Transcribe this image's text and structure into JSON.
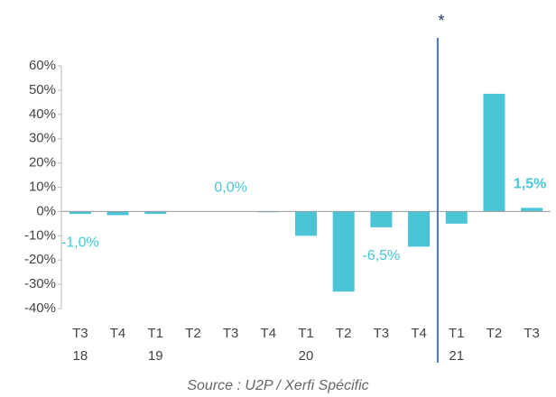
{
  "chart_data": {
    "type": "bar",
    "categories": [
      "T3",
      "T4",
      "T1",
      "T2",
      "T3",
      "T4",
      "T1",
      "T2",
      "T3",
      "T4",
      "T1",
      "T2",
      "T3"
    ],
    "category_years": [
      "18",
      null,
      "19",
      null,
      null,
      null,
      "20",
      null,
      null,
      null,
      "21",
      null,
      null
    ],
    "values": [
      -1.0,
      -1.5,
      -1.0,
      0,
      0.0,
      -0.3,
      -10,
      -33,
      -6.5,
      -14.5,
      -5,
      48.5,
      1.5
    ],
    "value_labels": [
      "-1,0%",
      null,
      null,
      null,
      "0,0%",
      null,
      null,
      null,
      "-6,5%",
      null,
      null,
      null,
      "1,5%"
    ],
    "color": "#4bc5d5",
    "ylim": [
      -40,
      60
    ],
    "yticks": [
      {
        "value": -40,
        "label": "-40%"
      },
      {
        "value": -30,
        "label": "-30%"
      },
      {
        "value": -20,
        "label": "-20%"
      },
      {
        "value": -10,
        "label": "-10%"
      },
      {
        "value": 0,
        "label": "0%"
      },
      {
        "value": 10,
        "label": "10%"
      },
      {
        "value": 20,
        "label": "20%"
      },
      {
        "value": 30,
        "label": "30%"
      },
      {
        "value": 40,
        "label": "40%"
      },
      {
        "value": 50,
        "label": "50%"
      },
      {
        "value": 60,
        "label": "60%"
      }
    ],
    "grid": false,
    "annotation": "*",
    "source": "Source : U2P / Xerfi Spécific"
  }
}
